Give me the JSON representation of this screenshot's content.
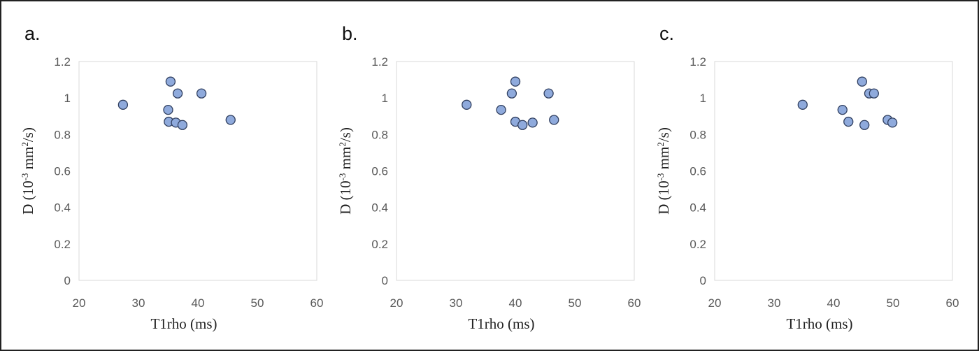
{
  "chart_data": [
    {
      "type": "scatter",
      "panel_label": "a.",
      "xlabel": "T1rho (ms)",
      "ylabel": {
        "prefix": "D (10",
        "sup1": "-3",
        "middle": " mm",
        "sup2": "2",
        "suffix": "/s)"
      },
      "xlim": [
        20,
        60
      ],
      "ylim": [
        0,
        1.2
      ],
      "xticks": [
        "20",
        "30",
        "40",
        "50",
        "60"
      ],
      "yticks": [
        "0",
        "0.2",
        "0.4",
        "0.6",
        "0.8",
        "1",
        "1.2"
      ],
      "grid": false,
      "x": [
        27.4,
        35.4,
        36.6,
        40.6,
        35.0,
        35.1,
        36.3,
        37.4,
        45.5
      ],
      "y": [
        0.963,
        1.09,
        1.025,
        1.025,
        0.935,
        0.87,
        0.865,
        0.852,
        0.88
      ]
    },
    {
      "type": "scatter",
      "panel_label": "b.",
      "xlabel": "T1rho (ms)",
      "ylabel": {
        "prefix": "D (10",
        "sup1": "-3",
        "middle": " mm",
        "sup2": "2",
        "suffix": "/s)"
      },
      "xlim": [
        20,
        60
      ],
      "ylim": [
        0,
        1.2
      ],
      "xticks": [
        "20",
        "30",
        "40",
        "50",
        "60"
      ],
      "yticks": [
        "0",
        "0.2",
        "0.4",
        "0.6",
        "0.8",
        "1",
        "1.2"
      ],
      "grid": false,
      "x": [
        31.8,
        37.6,
        39.4,
        40.0,
        40.0,
        41.2,
        42.9,
        45.6,
        46.5
      ],
      "y": [
        0.963,
        0.935,
        1.025,
        1.09,
        0.87,
        0.852,
        0.865,
        1.025,
        0.88
      ]
    },
    {
      "type": "scatter",
      "panel_label": "c.",
      "xlabel": "T1rho (ms)",
      "ylabel": {
        "prefix": "D (10",
        "sup1": "-3",
        "middle": " mm",
        "sup2": "2",
        "suffix": "/s)"
      },
      "xlim": [
        20,
        60
      ],
      "ylim": [
        0,
        1.2
      ],
      "xticks": [
        "20",
        "30",
        "40",
        "50",
        "60"
      ],
      "yticks": [
        "0",
        "0.2",
        "0.4",
        "0.6",
        "0.8",
        "1",
        "1.2"
      ],
      "grid": false,
      "x": [
        34.8,
        41.5,
        42.5,
        44.8,
        45.2,
        46.0,
        46.8,
        49.1,
        49.9
      ],
      "y": [
        0.963,
        0.935,
        0.87,
        1.09,
        0.852,
        1.025,
        1.025,
        0.88,
        0.865
      ]
    }
  ],
  "colors": {
    "point_fill": "#8faadc",
    "point_stroke": "#2f3e5e",
    "plot_border": "#d9d9d9",
    "tick_text": "#595959"
  }
}
